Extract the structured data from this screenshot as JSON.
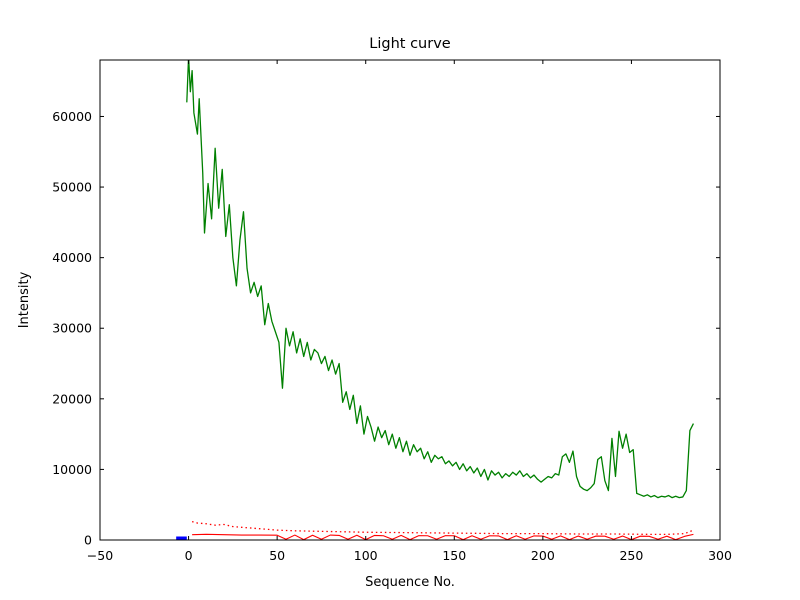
{
  "figure": {
    "background": "#ffffff"
  },
  "chart_data": {
    "type": "line",
    "title": "Light curve",
    "xlabel": "Sequence No.",
    "ylabel": "Intensity",
    "xlim": [
      -50,
      300
    ],
    "ylim": [
      0,
      68000
    ],
    "grid": false,
    "legend": null,
    "xticks": [
      -50,
      0,
      50,
      100,
      150,
      200,
      250,
      300
    ],
    "xtick_labels": [
      "−50",
      "0",
      "50",
      "100",
      "150",
      "200",
      "250",
      "300"
    ],
    "yticks": [
      0,
      10000,
      20000,
      30000,
      40000,
      50000,
      60000
    ],
    "ytick_labels": [
      "0",
      "10000",
      "20000",
      "30000",
      "40000",
      "50000",
      "60000"
    ],
    "series": [
      {
        "name": "intensity-green",
        "color": "#008000",
        "style": "solid",
        "width": 1.3,
        "x": [
          -1,
          0,
          1,
          2,
          3,
          5,
          6,
          8,
          9,
          11,
          13,
          15,
          17,
          19,
          21,
          23,
          25,
          27,
          29,
          31,
          33,
          35,
          37,
          39,
          41,
          43,
          45,
          47,
          49,
          51,
          53,
          55,
          57,
          59,
          61,
          63,
          65,
          67,
          69,
          71,
          73,
          75,
          77,
          79,
          81,
          83,
          85,
          87,
          89,
          91,
          93,
          95,
          97,
          99,
          101,
          103,
          105,
          107,
          109,
          111,
          113,
          115,
          117,
          119,
          121,
          123,
          125,
          127,
          129,
          131,
          133,
          135,
          137,
          139,
          141,
          143,
          145,
          147,
          149,
          151,
          153,
          155,
          157,
          159,
          161,
          163,
          165,
          167,
          169,
          171,
          173,
          175,
          177,
          179,
          181,
          183,
          185,
          187,
          189,
          191,
          193,
          195,
          197,
          199,
          201,
          203,
          205,
          207,
          209,
          211,
          213,
          215,
          217,
          219,
          221,
          223,
          225,
          227,
          229,
          231,
          233,
          235,
          237,
          239,
          241,
          243,
          245,
          247,
          249,
          251,
          253,
          255,
          257,
          259,
          261,
          263,
          265,
          267,
          269,
          271,
          273,
          275,
          277,
          279,
          281,
          283,
          285
        ],
        "y": [
          62000,
          68500,
          63500,
          66500,
          60500,
          57500,
          62500,
          52000,
          43500,
          50500,
          45500,
          55500,
          47000,
          52500,
          43000,
          47500,
          40000,
          36000,
          42500,
          46500,
          38500,
          35000,
          36500,
          34500,
          36000,
          30500,
          33500,
          31000,
          29500,
          28000,
          21500,
          30000,
          27500,
          29500,
          26500,
          28500,
          26000,
          28000,
          25500,
          27000,
          26500,
          25000,
          26000,
          24000,
          25500,
          23500,
          25000,
          19500,
          21000,
          18500,
          20500,
          16500,
          19000,
          15000,
          17500,
          16000,
          14000,
          16000,
          14500,
          15500,
          13500,
          15000,
          13000,
          14500,
          12500,
          14000,
          12000,
          13500,
          12500,
          13000,
          11500,
          12500,
          11000,
          12000,
          11500,
          11800,
          10800,
          11200,
          10500,
          11000,
          10000,
          10800,
          9800,
          10400,
          9500,
          10200,
          9000,
          10000,
          8500,
          9800,
          9200,
          9600,
          8800,
          9400,
          9000,
          9600,
          9200,
          9800,
          9000,
          9400,
          8800,
          9200,
          8600,
          8200,
          8600,
          9000,
          8800,
          9400,
          9200,
          11800,
          12200,
          11000,
          12600,
          9000,
          7600,
          7200,
          7000,
          7400,
          8000,
          11400,
          11800,
          8400,
          7000,
          14400,
          9000,
          15400,
          13000,
          15000,
          12400,
          12800,
          6600,
          6400,
          6200,
          6400,
          6100,
          6300,
          6000,
          6200,
          6100,
          6300,
          6000,
          6200,
          6000,
          6100,
          7000,
          15500,
          16500
        ]
      },
      {
        "name": "background-red-solid",
        "color": "#ff0000",
        "style": "solid",
        "width": 1.1,
        "x": [
          2,
          10,
          20,
          30,
          40,
          50,
          55,
          60,
          65,
          70,
          75,
          80,
          85,
          90,
          95,
          100,
          105,
          110,
          115,
          120,
          125,
          130,
          135,
          140,
          145,
          150,
          155,
          160,
          165,
          170,
          175,
          180,
          185,
          190,
          195,
          200,
          205,
          210,
          215,
          220,
          225,
          230,
          235,
          240,
          245,
          250,
          255,
          260,
          265,
          270,
          275,
          280,
          285
        ],
        "y": [
          750,
          800,
          750,
          700,
          700,
          680,
          100,
          700,
          50,
          680,
          100,
          700,
          650,
          100,
          680,
          50,
          650,
          600,
          100,
          650,
          50,
          620,
          600,
          100,
          620,
          600,
          50,
          600,
          100,
          600,
          580,
          50,
          600,
          100,
          580,
          560,
          100,
          580,
          50,
          560,
          100,
          560,
          540,
          100,
          560,
          50,
          540,
          520,
          100,
          540,
          50,
          520,
          800
        ]
      },
      {
        "name": "background-red-dotted",
        "color": "#ff0000",
        "style": "dotted",
        "width": 1.3,
        "x": [
          2,
          5,
          10,
          15,
          20,
          25,
          30,
          35,
          40,
          45,
          50,
          60,
          70,
          80,
          90,
          100,
          120,
          140,
          160,
          180,
          200,
          220,
          240,
          260,
          270,
          280,
          285
        ],
        "y": [
          2600,
          2400,
          2300,
          2100,
          2200,
          1900,
          1800,
          1700,
          1600,
          1500,
          1400,
          1300,
          1250,
          1200,
          1150,
          1100,
          1050,
          1000,
          950,
          900,
          900,
          850,
          850,
          800,
          800,
          900,
          1400
        ]
      },
      {
        "name": "start-marker-blue",
        "color": "#0000ff",
        "style": "solid",
        "width": 3.5,
        "x": [
          -7,
          -1
        ],
        "y": [
          250,
          250
        ]
      }
    ]
  }
}
